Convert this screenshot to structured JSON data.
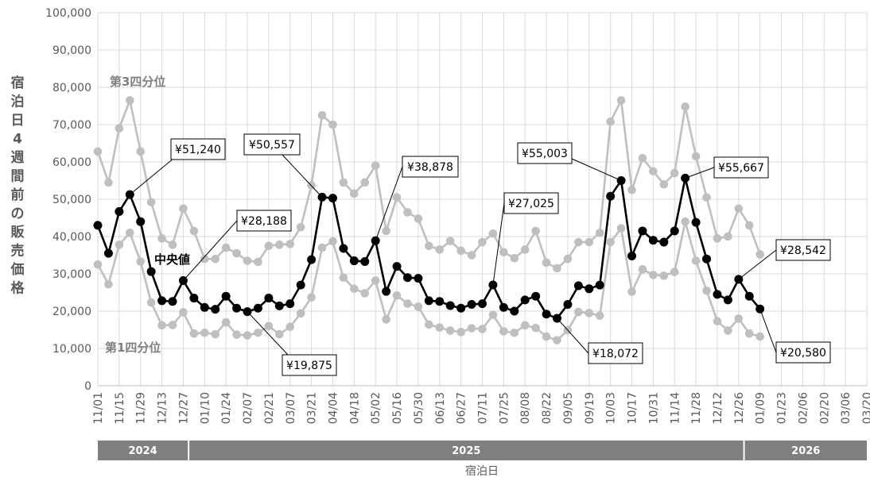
{
  "chart_data": {
    "type": "line",
    "ylabel": "宿泊日4週間前の販売価格",
    "xlabel": "宿泊日",
    "ylim": [
      0,
      100000
    ],
    "yticks": [
      "0",
      "10,000",
      "20,000",
      "30,000",
      "40,000",
      "50,000",
      "60,000",
      "70,000",
      "80,000",
      "90,000",
      "100,000"
    ],
    "xtick_labels": [
      "11/01",
      "11/15",
      "11/29",
      "12/13",
      "12/27",
      "01/10",
      "01/24",
      "02/07",
      "02/21",
      "03/07",
      "03/21",
      "04/04",
      "04/18",
      "05/02",
      "05/16",
      "05/30",
      "06/13",
      "06/27",
      "07/11",
      "07/25",
      "08/08",
      "08/22",
      "09/05",
      "09/19",
      "10/03",
      "10/17",
      "10/31",
      "11/14",
      "11/28",
      "12/12",
      "12/26",
      "01/09",
      "01/23",
      "02/06",
      "02/20",
      "03/06",
      "03/20"
    ],
    "years": [
      {
        "label": "2024",
        "start_week": 0,
        "end_week": 8.5
      },
      {
        "label": "2025",
        "start_week": 8.5,
        "end_week": 60.5
      },
      {
        "label": "2026",
        "start_week": 60.5,
        "end_week": 72
      }
    ],
    "grid": true,
    "series": [
      {
        "name": "第3四分位",
        "color": "#bfbfbf",
        "values": [
          62800,
          54500,
          69000,
          76500,
          62800,
          49200,
          39500,
          37800,
          47500,
          41500,
          34000,
          34000,
          37000,
          35500,
          33500,
          33200,
          37500,
          37800,
          38000,
          42500,
          53700,
          72500,
          70000,
          54500,
          51500,
          54500,
          59000,
          41500,
          50500,
          46500,
          44800,
          37500,
          36500,
          38800,
          36200,
          35000,
          38500,
          40800,
          35800,
          34200,
          36500,
          41500,
          33000,
          31500,
          34000,
          38500,
          38500,
          41000,
          70800,
          76500,
          52500,
          61000,
          57500,
          54000,
          57000,
          74800,
          61500,
          50500,
          39500,
          40000,
          47500,
          43000,
          35200
        ]
      },
      {
        "name": "中央値",
        "color": "#000000",
        "values": [
          43000,
          35500,
          46700,
          51240,
          44000,
          30600,
          22800,
          22600,
          28188,
          23500,
          21000,
          20500,
          24000,
          20800,
          19875,
          20800,
          23500,
          21400,
          22000,
          27000,
          33800,
          50557,
          50300,
          36800,
          33500,
          33300,
          38878,
          25300,
          32000,
          29000,
          28800,
          22800,
          22600,
          21500,
          20800,
          21800,
          22000,
          27025,
          21000,
          20000,
          23000,
          24000,
          19200,
          18072,
          21800,
          26800,
          26000,
          27000,
          50800,
          55003,
          34800,
          41500,
          39000,
          38500,
          41500,
          55667,
          43800,
          34000,
          24500,
          23000,
          28542,
          24000,
          20580
        ]
      },
      {
        "name": "第1四分位",
        "color": "#bfbfbf",
        "values": [
          32500,
          27200,
          37800,
          41000,
          33300,
          22300,
          16200,
          16300,
          19700,
          14000,
          14200,
          13800,
          17000,
          13700,
          13500,
          14200,
          16000,
          13800,
          15800,
          19400,
          23700,
          37000,
          38700,
          29000,
          26000,
          24800,
          28200,
          17800,
          24200,
          22000,
          21200,
          16400,
          15600,
          14800,
          14400,
          15400,
          15200,
          19000,
          14600,
          14200,
          16200,
          15500,
          13200,
          12200,
          14900,
          19800,
          19500,
          18800,
          38500,
          42200,
          25200,
          31200,
          29700,
          29500,
          30500,
          44000,
          33500,
          25500,
          17300,
          14800,
          18000,
          14000,
          13200
        ]
      }
    ],
    "labels": {
      "q3": "第3四分位",
      "median": "中央値",
      "q1": "第1四分位"
    },
    "annotations": [
      {
        "index": 3,
        "text": "¥51,240"
      },
      {
        "index": 8,
        "text": "¥28,188"
      },
      {
        "index": 14,
        "text": "¥19,875"
      },
      {
        "index": 21,
        "text": "¥50,557"
      },
      {
        "index": 26,
        "text": "¥38,878"
      },
      {
        "index": 37,
        "text": "¥27,025"
      },
      {
        "index": 43,
        "text": "¥18,072"
      },
      {
        "index": 49,
        "text": "¥55,003"
      },
      {
        "index": 55,
        "text": "¥55,667"
      },
      {
        "index": 60,
        "text": "¥28,542"
      },
      {
        "index": 62,
        "text": "¥20,580"
      }
    ]
  }
}
